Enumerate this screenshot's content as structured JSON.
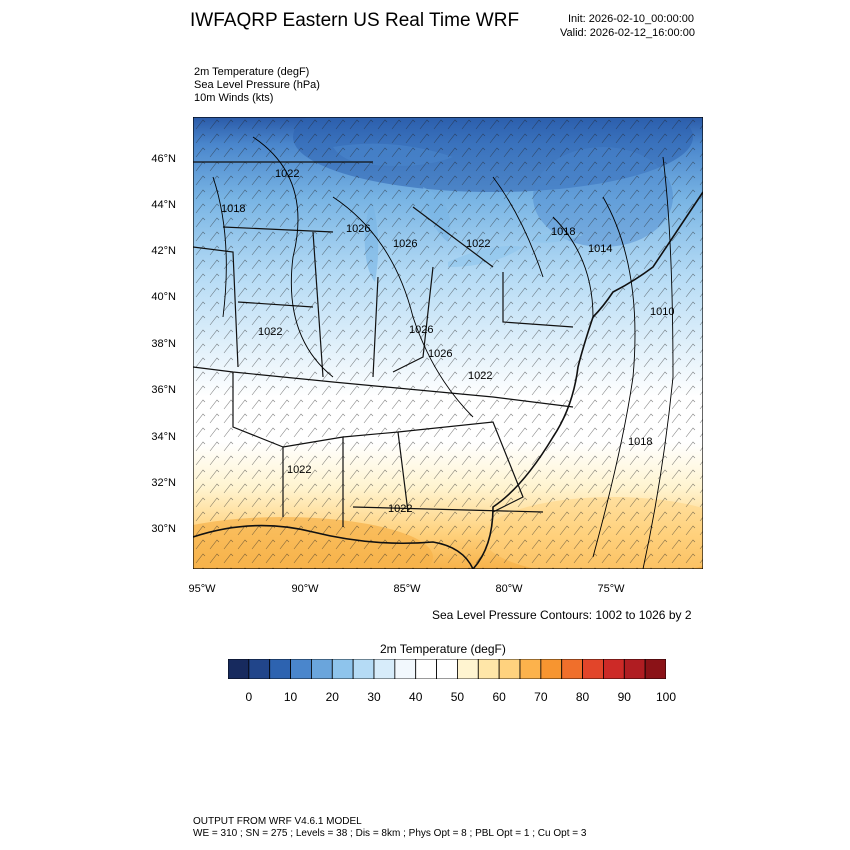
{
  "header": {
    "title": "IWFAQRP Eastern US Real Time WRF",
    "init": "Init: 2026-02-10_00:00:00",
    "valid": "Valid: 2026-02-12_16:00:00"
  },
  "fields": [
    "2m Temperature   (degF)",
    "Sea Level Pressure   (hPa)",
    "10m Winds   (kts)"
  ],
  "map": {
    "lat_labels": [
      "46°N",
      "44°N",
      "42°N",
      "40°N",
      "38°N",
      "36°N",
      "34°N",
      "32°N",
      "30°N"
    ],
    "lon_labels": [
      "95°W",
      "90°W",
      "85°W",
      "80°W",
      "75°W"
    ],
    "pressure_labels": [
      "1022",
      "1018",
      "1026",
      "1026",
      "1022",
      "1018",
      "1014",
      "1010",
      "1022",
      "1026",
      "1026",
      "1022",
      "1018",
      "1022",
      "1022"
    ],
    "colors": {
      "cold": "#2a5aa8",
      "cool": "#78b4e4",
      "mild": "#d8ecf8",
      "neutral": "#ffffff",
      "warm": "#ffe7ad",
      "hot": "#f7b24a"
    }
  },
  "contours_note": "Sea Level Pressure Contours: 1002 to 1026 by 2",
  "colorbar": {
    "title": "2m Temperature  (degF)",
    "tick_labels": [
      "0",
      "10",
      "20",
      "30",
      "40",
      "50",
      "60",
      "70",
      "80",
      "90",
      "100"
    ],
    "colors": [
      "#172a5e",
      "#21458a",
      "#2d63b0",
      "#4a86cc",
      "#6aa5dc",
      "#8ec4ec",
      "#b5dbf5",
      "#d7ecfa",
      "#f2f8fd",
      "#ffffff",
      "#ffffff",
      "#fff4d0",
      "#ffe6a8",
      "#ffd27e",
      "#fcb24c",
      "#f79530",
      "#f06f2b",
      "#e2452a",
      "#cd2a27",
      "#b01d22",
      "#8b1217"
    ]
  },
  "footer": {
    "line1": "OUTPUT FROM WRF V4.6.1 MODEL",
    "line2": "WE = 310 ; SN = 275 ; Levels = 38 ; Dis = 8km ; Phys Opt = 8 ; PBL Opt = 1 ; Cu Opt = 3"
  }
}
